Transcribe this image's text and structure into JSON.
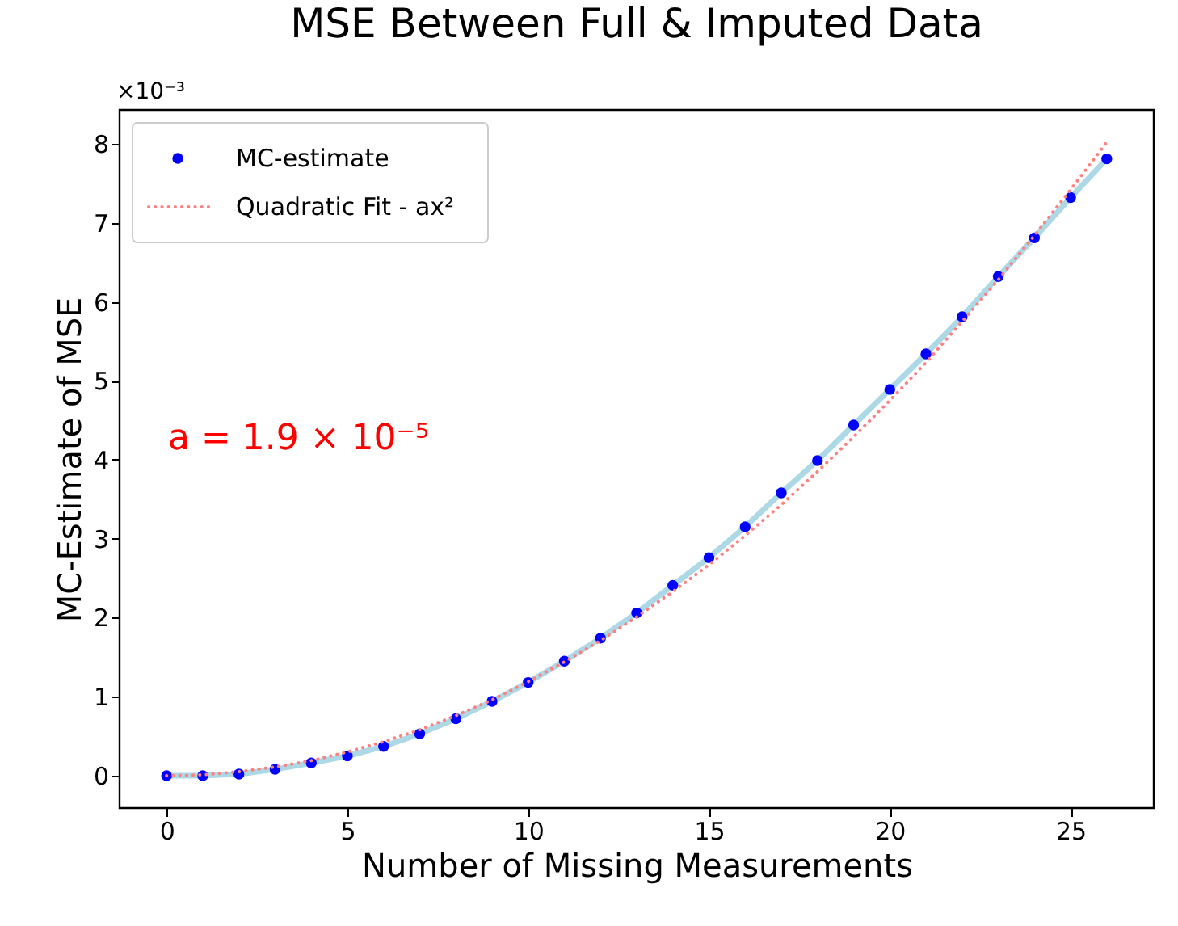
{
  "chart_data": {
    "type": "scatter",
    "title": "MSE Between Full & Imputed Data",
    "xlabel": "Number of Missing Measurements",
    "ylabel": "MC-Estimate of MSE",
    "x": [
      0,
      1,
      2,
      3,
      4,
      5,
      6,
      7,
      8,
      9,
      10,
      11,
      12,
      13,
      14,
      15,
      16,
      17,
      18,
      19,
      20,
      21,
      22,
      23,
      24,
      25,
      26
    ],
    "series": [
      {
        "type": "line",
        "color": "#add8e6",
        "line_style": "solid",
        "marker": "none",
        "values": [
          0,
          0.0,
          0.02,
          0.08,
          0.16,
          0.25,
          0.37,
          0.53,
          0.72,
          0.94,
          1.18,
          1.45,
          1.74,
          2.06,
          2.41,
          2.76,
          3.15,
          3.58,
          3.99,
          4.44,
          4.89,
          5.34,
          5.81,
          6.32,
          6.81,
          7.32,
          7.81
        ]
      },
      {
        "name": "MC-estimate",
        "color": "#0000ff",
        "marker": "circle",
        "values": [
          0,
          0.0,
          0.02,
          0.08,
          0.16,
          0.25,
          0.37,
          0.53,
          0.72,
          0.94,
          1.18,
          1.45,
          1.74,
          2.06,
          2.41,
          2.76,
          3.15,
          3.58,
          3.99,
          4.44,
          4.89,
          5.34,
          5.81,
          6.32,
          6.81,
          7.32,
          7.81
        ]
      },
      {
        "type": "line",
        "name": "Quadratic Fit - ax²",
        "color": "#ff8080",
        "line_style": "dotted",
        "marker": "none",
        "values": [
          0,
          0.01,
          0.05,
          0.11,
          0.19,
          0.3,
          0.43,
          0.58,
          0.76,
          0.96,
          1.19,
          1.44,
          1.71,
          2.01,
          2.33,
          2.67,
          3.04,
          3.43,
          3.85,
          4.29,
          4.75,
          5.23,
          5.75,
          6.28,
          6.84,
          7.42,
          8.02
        ]
      }
    ],
    "xlim": [
      -1.3,
      27.3
    ],
    "ylim": [
      -0.41,
      8.43
    ],
    "xticks": [
      0,
      5,
      10,
      15,
      20,
      25
    ],
    "yticks": [
      0,
      1,
      2,
      3,
      4,
      5,
      6,
      7,
      8
    ],
    "annotations": [
      "×10⁻³",
      "a = 1.9 × 10⁻⁵"
    ],
    "legend": "top left",
    "grid": false
  }
}
